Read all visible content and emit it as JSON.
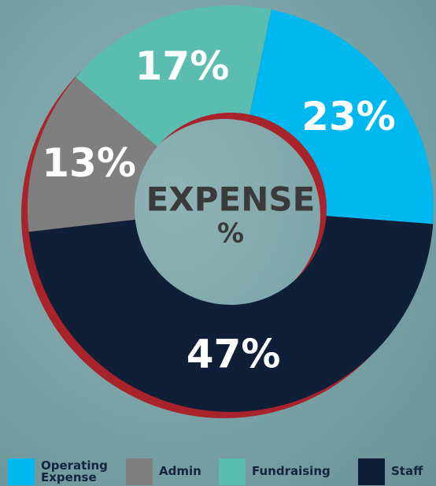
{
  "chart_data": {
    "type": "donut",
    "center_title": "EXPENSE",
    "center_subtitle": "%",
    "categories": [
      "Operating Expense",
      "Staff",
      "Admin",
      "Fundraising"
    ],
    "values": [
      23,
      47,
      13,
      17
    ],
    "value_labels": [
      "23%",
      "47%",
      "13%",
      "17%"
    ],
    "colors": [
      "#00b8f0",
      "#0f1f38",
      "#7f7f7f",
      "#5bbdb0"
    ],
    "legend": "bottom"
  }
}
